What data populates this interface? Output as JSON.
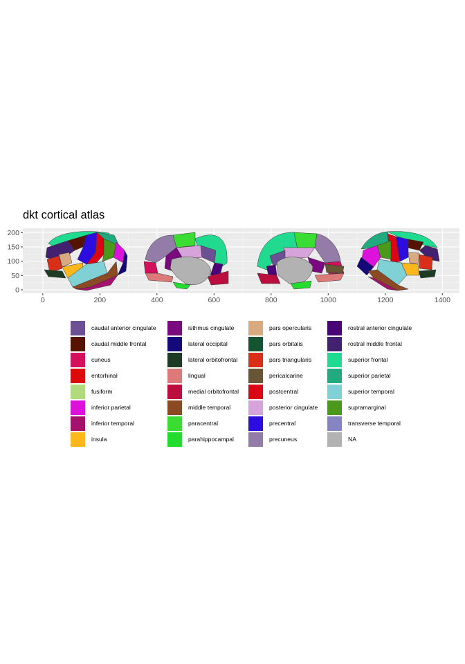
{
  "chart_data": {
    "type": "other",
    "title": "dkt cortical atlas",
    "xlabel": "",
    "ylabel": "",
    "x_ticks": [
      0,
      200,
      400,
      600,
      800,
      1000,
      1200,
      1400
    ],
    "y_ticks": [
      0,
      50,
      100,
      150,
      200
    ],
    "xlim": [
      -70,
      1460
    ],
    "ylim": [
      -12,
      215
    ],
    "grid": true,
    "legend_position": "bottom",
    "legend": [
      {
        "label": "caudal anterior cingulate",
        "color": "#6B5193"
      },
      {
        "label": "caudal middle frontal",
        "color": "#561400"
      },
      {
        "label": "cuneus",
        "color": "#D40F5E"
      },
      {
        "label": "entorhinal",
        "color": "#DC0A0A"
      },
      {
        "label": "fusiform",
        "color": "#B1DA7C"
      },
      {
        "label": "inferior parietal",
        "color": "#DC12DC"
      },
      {
        "label": "inferior temporal",
        "color": "#A5126B"
      },
      {
        "label": "insula",
        "color": "#FFB71E"
      },
      {
        "label": "isthmus cingulate",
        "color": "#7A0B7E"
      },
      {
        "label": "lateral occipital",
        "color": "#15097A"
      },
      {
        "label": "lateral orbitofrontal",
        "color": "#1E3C24"
      },
      {
        "label": "lingual",
        "color": "#DC7979"
      },
      {
        "label": "medial orbitofrontal",
        "color": "#BC0E3E"
      },
      {
        "label": "middle temporal",
        "color": "#8C4A24"
      },
      {
        "label": "paracentral",
        "color": "#3BDC33"
      },
      {
        "label": "parahippocampal",
        "color": "#23DC2E"
      },
      {
        "label": "pars opercularis",
        "color": "#D9A980"
      },
      {
        "label": "pars orbitalis",
        "color": "#145531"
      },
      {
        "label": "pars triangularis",
        "color": "#D92E17"
      },
      {
        "label": "pericalcarine",
        "color": "#675533"
      },
      {
        "label": "postcentral",
        "color": "#DA0515"
      },
      {
        "label": "posterior cingulate",
        "color": "#D6A4DA"
      },
      {
        "label": "precentral",
        "color": "#2C0CDF"
      },
      {
        "label": "precuneus",
        "color": "#937CA7"
      },
      {
        "label": "rostral anterior cingulate",
        "color": "#4A0476"
      },
      {
        "label": "rostral middle frontal",
        "color": "#412170"
      },
      {
        "label": "superior frontal",
        "color": "#20DA90"
      },
      {
        "label": "superior parietal",
        "color": "#20AA7E"
      },
      {
        "label": "superior temporal",
        "color": "#7FD1D6"
      },
      {
        "label": "supramarginal",
        "color": "#4B991A"
      },
      {
        "label": "transverse temporal",
        "color": "#8585C4"
      },
      {
        "label": "NA",
        "color": "#B2B2B2"
      }
    ]
  }
}
